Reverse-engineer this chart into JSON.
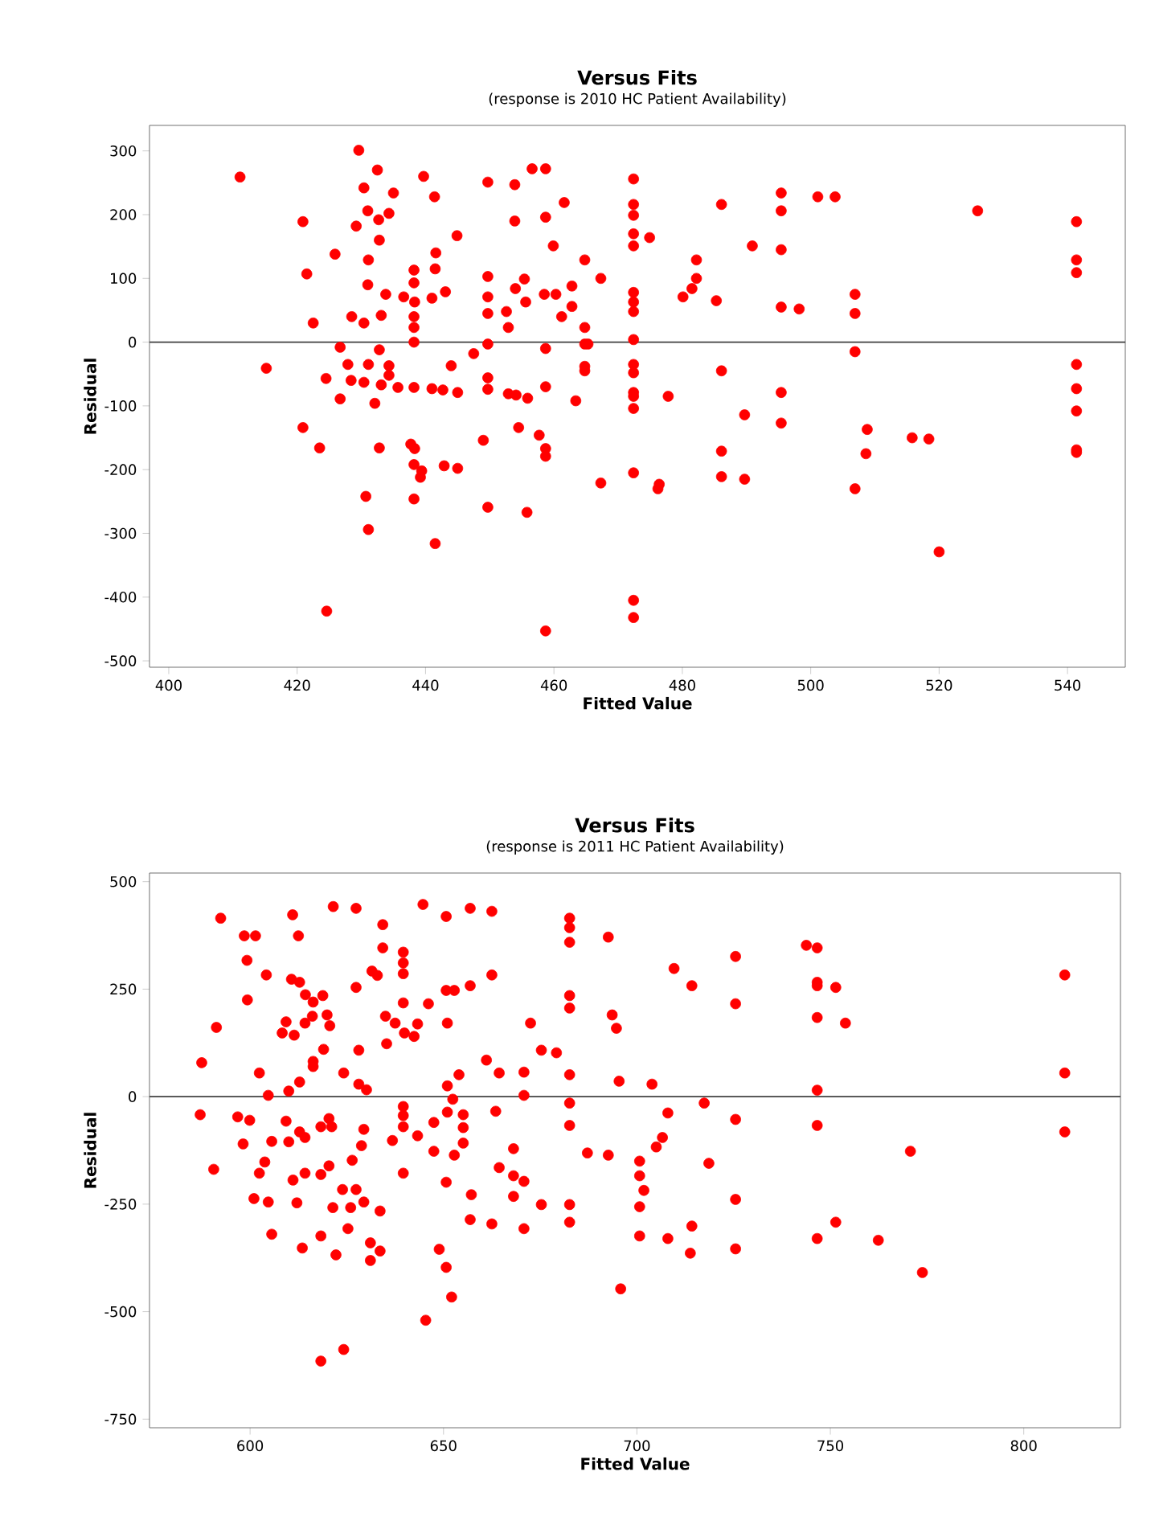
{
  "chart_data": [
    {
      "type": "scatter",
      "title": "Versus Fits",
      "subtitle": "(response is 2010 HC Patient Availability)",
      "xlabel": "Fitted Value",
      "ylabel": "Residual",
      "color": "#ff0000",
      "marker": "circle",
      "xlim": [
        397,
        549
      ],
      "ylim": [
        -510,
        340
      ],
      "xticks": [
        400,
        420,
        440,
        460,
        480,
        500,
        520,
        540
      ],
      "yticks": [
        300,
        200,
        100,
        0,
        -100,
        -200,
        -300,
        -400,
        -500
      ],
      "ref_lines": [
        {
          "axis": "y",
          "value": 0,
          "color": "#404040"
        }
      ],
      "x": [
        411.1,
        429.6,
        432.5,
        430.4,
        435.0,
        439.7,
        441.4,
        449.7,
        453.9,
        456.6,
        458.7,
        461.6,
        420.9,
        431.0,
        432.7,
        434.3,
        429.2,
        432.8,
        444.9,
        453.9,
        458.7,
        459.9,
        425.9,
        431.1,
        441.6,
        441.5,
        421.5,
        438.2,
        438.2,
        449.7,
        449.7,
        449.7,
        455.4,
        454.0,
        455.6,
        458.5,
        460.3,
        462.8,
        464.8,
        467.3,
        462.8,
        461.2,
        464.8,
        452.6,
        452.9,
        431.0,
        433.8,
        436.6,
        438.3,
        441.0,
        443.1,
        433.1,
        428.5,
        430.4,
        422.5,
        438.2,
        438.2,
        438.2,
        426.7,
        432.8,
        447.5,
        449.7,
        458.7,
        464.8,
        465.3,
        415.2,
        427.9,
        431.1,
        434.3,
        444.0,
        464.8,
        464.8,
        424.5,
        428.4,
        430.4,
        433.1,
        434.3,
        435.7,
        438.2,
        441.0,
        442.7,
        445.0,
        449.7,
        449.7,
        452.9,
        455.9,
        454.1,
        458.7,
        426.7,
        432.1,
        463.4,
        420.9,
        423.5,
        432.8,
        437.7,
        438.3,
        438.2,
        439.4,
        439.2,
        442.9,
        445.0,
        449.0,
        454.5,
        457.7,
        458.7,
        458.7,
        467.3,
        430.7,
        438.2,
        449.7,
        455.8,
        431.1,
        441.5,
        424.6,
        458.7,
        472.4,
        472.4,
        472.4,
        472.4,
        472.4,
        474.9,
        472.4,
        472.4,
        472.4,
        472.4,
        472.4,
        472.4,
        472.4,
        472.4,
        472.4,
        477.8,
        472.4,
        476.4,
        476.2,
        472.4,
        472.4,
        482.2,
        482.2,
        481.5,
        480.1,
        485.3,
        486.1,
        486.1,
        486.1,
        486.1,
        489.7,
        489.7,
        490.9,
        495.4,
        495.4,
        495.4,
        495.4,
        498.2,
        495.4,
        495.4,
        501.1,
        503.8,
        506.9,
        506.9,
        506.9,
        506.9,
        508.8,
        508.6,
        515.8,
        518.4,
        520.0,
        526.0,
        541.4,
        541.4,
        541.4,
        541.4,
        541.4,
        541.4,
        541.4,
        541.4
      ],
      "values": [
        259,
        301,
        270,
        242,
        234,
        260,
        228,
        251,
        247,
        272,
        272,
        219,
        189,
        206,
        192,
        202,
        182,
        160,
        167,
        190,
        196,
        151,
        138,
        129,
        140,
        115,
        107,
        113,
        93,
        103,
        71,
        45,
        99,
        84,
        63,
        75,
        75,
        88,
        129,
        100,
        56,
        40,
        23,
        48,
        23,
        90,
        75,
        71,
        63,
        69,
        79,
        42,
        40,
        30,
        30,
        40,
        23,
        0,
        -8,
        -12,
        -18,
        -3,
        -10,
        -3,
        -3,
        -41,
        -35,
        -35,
        -37,
        -37,
        -38,
        -45,
        -57,
        -60,
        -63,
        -67,
        -52,
        -71,
        -71,
        -73,
        -75,
        -79,
        -56,
        -74,
        -81,
        -88,
        -83,
        -70,
        -89,
        -96,
        -92,
        -134,
        -166,
        -166,
        -160,
        -167,
        -192,
        -202,
        -212,
        -194,
        -198,
        -154,
        -134,
        -146,
        -167,
        -179,
        -221,
        -242,
        -246,
        -259,
        -267,
        -294,
        -316,
        -422,
        -453,
        256,
        216,
        199,
        170,
        151,
        164,
        78,
        63,
        48,
        4,
        -35,
        -48,
        -79,
        -85,
        -104,
        -85,
        -205,
        -223,
        -230,
        -405,
        -432,
        129,
        100,
        84,
        71,
        65,
        216,
        -45,
        -171,
        -211,
        -114,
        -215,
        151,
        234,
        206,
        145,
        55,
        52,
        -79,
        -127,
        228,
        228,
        75,
        45,
        -15,
        -230,
        -137,
        -175,
        -150,
        -152,
        -329,
        206,
        189,
        129,
        109,
        -35,
        -73,
        -108,
        -169,
        -173
      ]
    },
    {
      "type": "scatter",
      "title": "Versus Fits",
      "subtitle": "(response is 2011 HC Patient Availability)",
      "xlabel": "Fitted Value",
      "ylabel": "Residual",
      "color": "#ff0000",
      "marker": "circle",
      "xlim": [
        574,
        825
      ],
      "ylim": [
        -770,
        520
      ],
      "xticks": [
        600,
        650,
        700,
        750,
        800
      ],
      "yticks": [
        500,
        250,
        0,
        -250,
        -500,
        -750
      ],
      "ref_lines": [
        {
          "axis": "y",
          "value": 0,
          "color": "#404040"
        }
      ],
      "x": [
        592.4,
        598.5,
        601.4,
        611.0,
        612.5,
        621.5,
        627.4,
        634.3,
        634.3,
        644.7,
        650.7,
        656.9,
        662.5,
        639.6,
        639.6,
        639.6,
        599.2,
        604.2,
        610.7,
        612.8,
        631.5,
        632.9,
        627.4,
        614.3,
        616.3,
        618.8,
        599.3,
        591.3,
        609.3,
        608.3,
        611.4,
        614.2,
        616.1,
        619.9,
        620.6,
        635.0,
        637.5,
        639.9,
        642.4,
        643.3,
        635.3,
        639.6,
        646.1,
        650.7,
        652.8,
        656.9,
        662.5,
        651.0,
        672.5,
        587.5,
        602.4,
        619.0,
        616.3,
        616.3,
        612.8,
        610.0,
        604.7,
        628.1,
        624.2,
        628.1,
        630.1,
        661.1,
        664.4,
        670.8,
        670.8,
        675.3,
        679.2,
        682.6,
        682.6,
        682.6,
        682.6,
        682.6,
        682.6,
        692.6,
        693.6,
        694.7,
        695.4,
        654.0,
        651.0,
        652.4,
        651.0,
        639.6,
        639.6,
        639.6,
        587.1,
        596.8,
        599.9,
        609.3,
        598.2,
        605.6,
        610.0,
        612.8,
        614.2,
        618.3,
        620.4,
        621.1,
        629.4,
        628.8,
        636.8,
        643.3,
        647.5,
        647.5,
        655.1,
        655.1,
        655.1,
        652.8,
        663.5,
        668.1,
        590.6,
        602.4,
        603.8,
        611.1,
        614.2,
        618.3,
        620.4,
        626.4,
        639.6,
        650.7,
        664.4,
        668.1,
        670.8,
        682.6,
        682.6,
        687.2,
        692.6,
        601.0,
        604.7,
        612.1,
        621.4,
        623.9,
        626.0,
        627.4,
        629.4,
        633.6,
        657.2,
        668.1,
        675.3,
        682.6,
        682.6,
        656.9,
        662.5,
        670.8,
        605.6,
        613.5,
        618.3,
        622.2,
        625.3,
        631.1,
        633.6,
        631.1,
        648.9,
        650.7,
        652.1,
        645.4,
        624.2,
        618.3,
        695.8,
        709.6,
        714.2,
        725.5,
        725.5,
        743.8,
        746.6,
        746.6,
        746.6,
        751.4,
        746.6,
        753.9,
        810.6,
        810.6,
        810.6,
        703.9,
        746.6,
        717.4,
        708.0,
        725.5,
        746.6,
        706.6,
        705.0,
        770.7,
        700.7,
        700.7,
        701.8,
        700.7,
        718.6,
        725.5,
        714.2,
        700.7,
        708.0,
        713.8,
        725.5,
        746.6,
        751.4,
        762.4,
        773.8
      ],
      "values": [
        415,
        374,
        374,
        423,
        374,
        442,
        438,
        400,
        346,
        447,
        419,
        438,
        431,
        336,
        311,
        286,
        317,
        283,
        273,
        266,
        292,
        282,
        254,
        237,
        220,
        235,
        225,
        161,
        174,
        148,
        143,
        171,
        187,
        190,
        165,
        187,
        171,
        148,
        140,
        169,
        123,
        218,
        216,
        247,
        247,
        258,
        283,
        171,
        171,
        79,
        55,
        110,
        82,
        70,
        34,
        13,
        3,
        108,
        55,
        29,
        16,
        85,
        55,
        57,
        3,
        108,
        102,
        415,
        393,
        359,
        235,
        206,
        51,
        371,
        190,
        159,
        36,
        51,
        25,
        -6,
        -36,
        -23,
        -44,
        -70,
        -42,
        -47,
        -55,
        -57,
        -110,
        -104,
        -105,
        -82,
        -95,
        -70,
        -51,
        -70,
        -76,
        -114,
        -102,
        -91,
        -60,
        -127,
        -42,
        -72,
        -108,
        -136,
        -34,
        -121,
        -169,
        -178,
        -152,
        -194,
        -178,
        -181,
        -161,
        -148,
        -178,
        -199,
        -165,
        -184,
        -197,
        -67,
        -15,
        -131,
        -136,
        -237,
        -245,
        -247,
        -258,
        -216,
        -258,
        -216,
        -245,
        -266,
        -228,
        -232,
        -251,
        -251,
        -292,
        -286,
        -296,
        -307,
        -320,
        -352,
        -324,
        -368,
        -307,
        -340,
        -359,
        -381,
        -355,
        -397,
        -466,
        -520,
        -588,
        -615,
        -447,
        298,
        258,
        326,
        216,
        352,
        346,
        266,
        258,
        254,
        184,
        171,
        283,
        55,
        -82,
        29,
        15,
        -15,
        -38,
        -53,
        -67,
        -95,
        -117,
        -127,
        -150,
        -184,
        -218,
        -256,
        -155,
        -239,
        -301,
        -324,
        -330,
        -364,
        -354,
        -330,
        -292,
        -334,
        -409
      ]
    }
  ]
}
